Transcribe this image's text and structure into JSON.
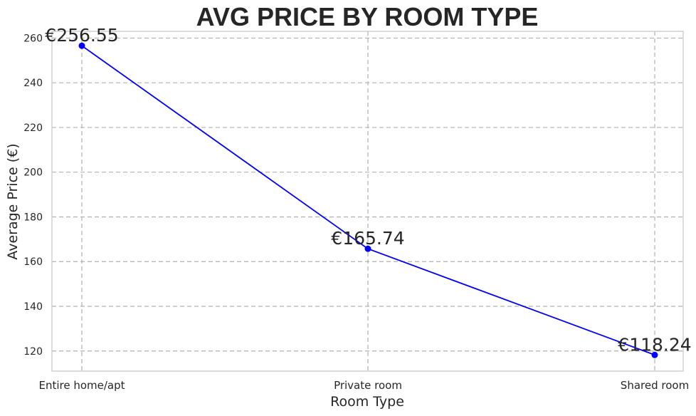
{
  "chart_data": {
    "type": "line",
    "title": "AVG PRICE BY ROOM TYPE",
    "xlabel": "Room Type",
    "ylabel": "Average Price (€)",
    "categories": [
      "Entire home/apt",
      "Private room",
      "Shared room"
    ],
    "values": [
      256.55,
      165.74,
      118.24
    ],
    "data_labels": [
      "€256.55",
      "€165.74",
      "€118.24"
    ],
    "ylim": [
      111,
      263
    ],
    "yticks": [
      120,
      140,
      160,
      180,
      200,
      220,
      240,
      260
    ],
    "grid": true,
    "line_color": "#0000ff",
    "marker": "circle"
  }
}
